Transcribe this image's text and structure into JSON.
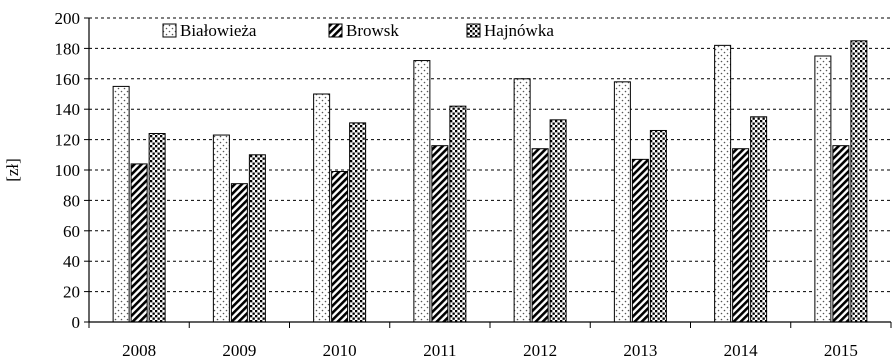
{
  "chart_data": {
    "type": "bar",
    "categories": [
      "2008",
      "2009",
      "2010",
      "2011",
      "2012",
      "2013",
      "2014",
      "2015"
    ],
    "series": [
      {
        "name": "Białowieża",
        "values": [
          155,
          123,
          150,
          172,
          160,
          158,
          182,
          175
        ]
      },
      {
        "name": "Browsk",
        "values": [
          104,
          91,
          99,
          116,
          114,
          107,
          114,
          116
        ]
      },
      {
        "name": "Hajnówka",
        "values": [
          124,
          110,
          131,
          142,
          133,
          126,
          135,
          185
        ]
      }
    ],
    "ylabel": "[zł]",
    "ylim": [
      0,
      200
    ],
    "yticks": [
      "0",
      "20",
      "40",
      "60",
      "80",
      "100",
      "120",
      "140",
      "160",
      "180",
      "200"
    ],
    "grid": "horizontal dashed",
    "legend_position": "top-left"
  }
}
